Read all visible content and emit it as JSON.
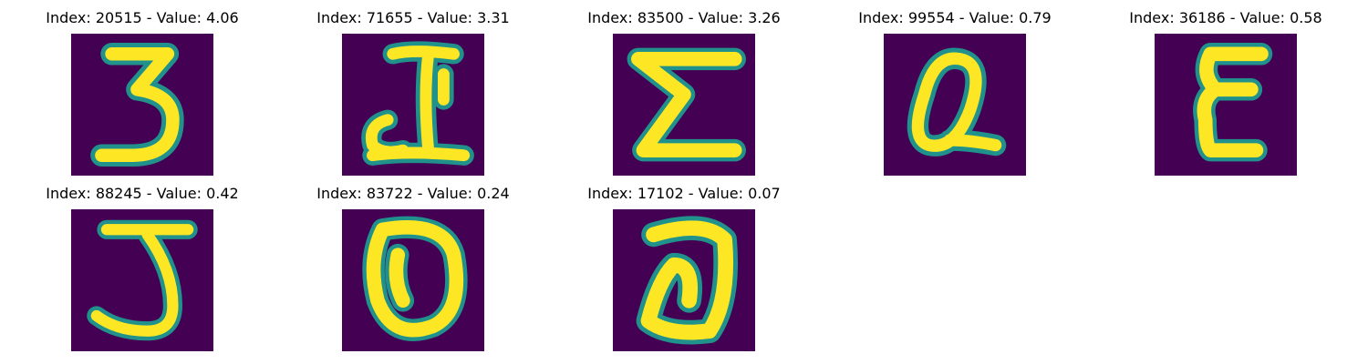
{
  "figure": {
    "background": "#ffffff",
    "colormap": "viridis",
    "bg_color": "#440154",
    "fg_color": "#fde725",
    "edge_color": "#21918c"
  },
  "panels": [
    {
      "index_text": "Index: 20515",
      "sep": " - ",
      "value_text": "Value: 4.06",
      "glyph": "3"
    },
    {
      "index_text": "Index: 71655",
      "sep": " - ",
      "value_text": "Value: 3.31",
      "glyph": "I"
    },
    {
      "index_text": "Index: 83500",
      "sep": " - ",
      "value_text": "Value: 3.26",
      "glyph": "Σ"
    },
    {
      "index_text": "Index: 99554",
      "sep": " - ",
      "value_text": "Value: 0.79",
      "glyph": "Q"
    },
    {
      "index_text": "Index: 36186",
      "sep": " - ",
      "value_text": "Value: 0.58",
      "glyph": "ε"
    },
    {
      "index_text": "Index: 88245",
      "sep": " - ",
      "value_text": "Value: 0.42",
      "glyph": "J"
    },
    {
      "index_text": "Index: 83722",
      "sep": " - ",
      "value_text": "Value: 0.24",
      "glyph": "O"
    },
    {
      "index_text": "Index: 17102",
      "sep": " - ",
      "value_text": "Value: 0.07",
      "glyph": "O"
    }
  ]
}
